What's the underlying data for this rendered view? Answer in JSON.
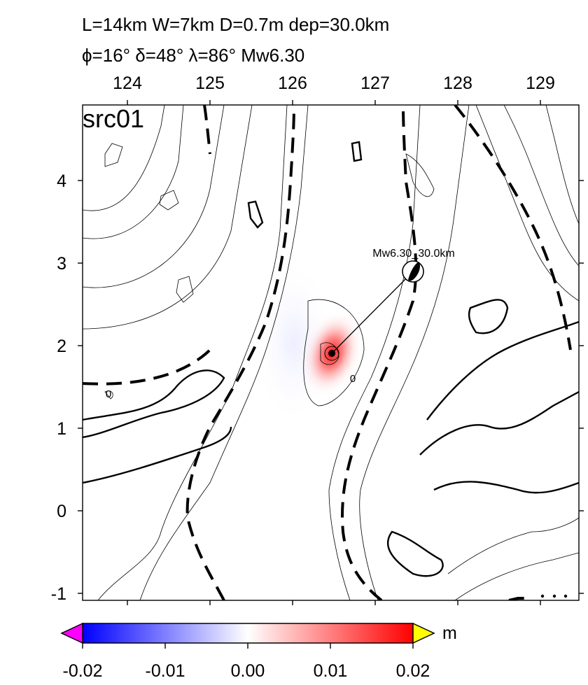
{
  "header": {
    "line1": "L=14km W=7km D=0.7m dep=30.0km",
    "line2": "ϕ=16° δ=48° λ=86° Mw6.30"
  },
  "map": {
    "panel_label": "src01",
    "x_ticks": [
      "124",
      "125",
      "126",
      "127",
      "128",
      "129"
    ],
    "y_ticks": [
      "4",
      "3",
      "2",
      "1",
      "0",
      "-1"
    ],
    "contour_labels": [
      "0",
      "0"
    ],
    "event_label": "Mw6.30_30.0km",
    "icons": [
      "beachball-icon",
      "epicenter-marker-icon"
    ],
    "colors": {
      "positive": "#ff0000",
      "negative": "#0000ff",
      "neutral": "#ffffff",
      "overflow_high": "#ffff00",
      "overflow_low": "#ff00ff"
    }
  },
  "colorbar": {
    "unit": "m",
    "ticks": [
      "-0.02",
      "-0.01",
      "0.00",
      "0.01",
      "0.02"
    ],
    "range": [
      -0.02,
      0.02
    ]
  }
}
